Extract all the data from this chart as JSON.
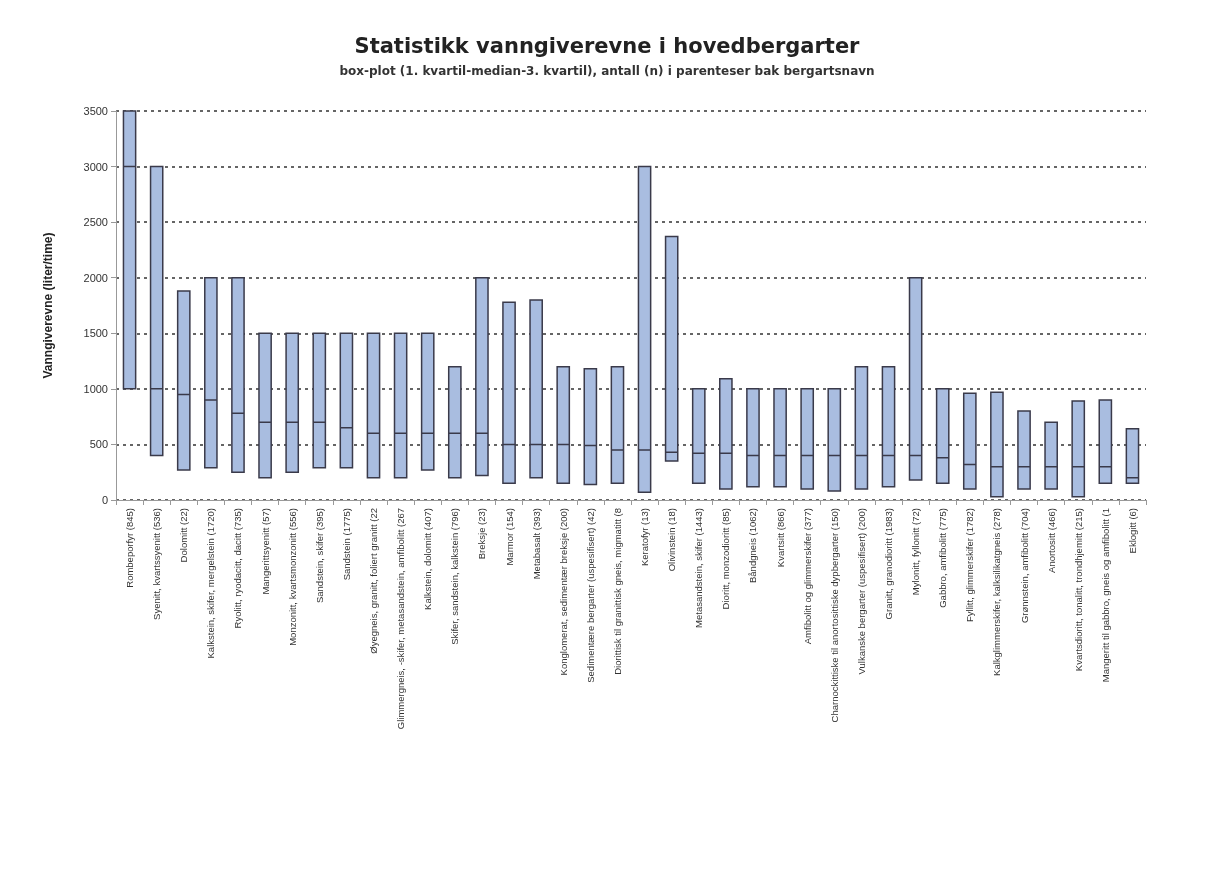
{
  "chart_data": {
    "type": "box",
    "title": "Statistikk vanngiverevne i hovedbergarter",
    "subtitle": "box-plot (1. kvartil-median-3. kvartil), antall (n) i parenteser bak bergartsnavn",
    "ylabel": "Vanngiverevne (liter/time)",
    "categories": [
      "Rombeporfyr (845)",
      "Syenitt, kvartssyenitt (536)",
      "Dolomitt (22)",
      "Kalkstein, skifer, mergelstein (1720)",
      "Ryolitt, ryodacitt, dacitt (735)",
      "Mangerittsyenitt (57)",
      "Monzonitt, kvartsmonzonitt (556)",
      "Sandstein, skifer (395)",
      "Sandstein (1775)",
      "Øyegneis, granitt, foliert granitt (22",
      "Glimmergneis, -skifer, metasandstein, amfibolitt (267",
      "Kalkstein, dolomitt (407)",
      "Skifer, sandstein, kalkstein (796)",
      "Breksje (23)",
      "Marmor (154)",
      "Metabasalt (393)",
      "Konglomerat, sedimentær breksje (200)",
      "Sedimentære bergarter (uspesifisert) (42)",
      "Diorittisk til granittisk gneis, migmatitt (8",
      "Keratofyr (13)",
      "Olivinstein (18)",
      "Metasandstein, skifer (1443)",
      "Dioritt, monzodioritt (85)",
      "Båndgneis (1062)",
      "Kvartsitt (866)",
      "Amfibolitt og glimmerskifer (377)",
      "Charnockittiske til anortosittiske dypbergarter (150)",
      "Vulkanske bergarter (uspesifisert) (200)",
      "Granitt, granodioritt (1983)",
      "Mylonitt, fyllonitt (72)",
      "Gabbro, amfibolitt (775)",
      "Fyllitt, glimmerskifer (1782)",
      "Kalkglimmerskifer, kalksilikatgneis (278)",
      "Grønnstein, amfibolitt (704)",
      "Anortositt (466)",
      "Kvartsdioritt, tonalitt, trondhjemitt (215)",
      "Mangeritt til gabbro, gneis og amfibolitt (1",
      "Eklogitt (6)"
    ],
    "series": [
      {
        "color": "#a9bde0",
        "boxes": [
          {
            "low": 1000,
            "q1": 1000,
            "median": 3000,
            "q3": 3500,
            "high": 3500
          },
          {
            "low": 400,
            "q1": 400,
            "median": 1000,
            "q3": 3000,
            "high": 3000
          },
          {
            "low": 270,
            "q1": 270,
            "median": 950,
            "q3": 1880,
            "high": 1880
          },
          {
            "low": 290,
            "q1": 290,
            "median": 900,
            "q3": 2000,
            "high": 2000
          },
          {
            "low": 250,
            "q1": 250,
            "median": 780,
            "q3": 2000,
            "high": 2000
          },
          {
            "low": 200,
            "q1": 200,
            "median": 700,
            "q3": 1500,
            "high": 1500
          },
          {
            "low": 250,
            "q1": 250,
            "median": 700,
            "q3": 1500,
            "high": 1500
          },
          {
            "low": 290,
            "q1": 290,
            "median": 700,
            "q3": 1500,
            "high": 1500
          },
          {
            "low": 290,
            "q1": 290,
            "median": 650,
            "q3": 1500,
            "high": 1500
          },
          {
            "low": 200,
            "q1": 200,
            "median": 600,
            "q3": 1500,
            "high": 1500
          },
          {
            "low": 200,
            "q1": 200,
            "median": 600,
            "q3": 1500,
            "high": 1500
          },
          {
            "low": 270,
            "q1": 270,
            "median": 600,
            "q3": 1500,
            "high": 1500
          },
          {
            "low": 200,
            "q1": 200,
            "median": 600,
            "q3": 1200,
            "high": 1200
          },
          {
            "low": 220,
            "q1": 220,
            "median": 600,
            "q3": 2000,
            "high": 2000
          },
          {
            "low": 150,
            "q1": 150,
            "median": 500,
            "q3": 1780,
            "high": 1780
          },
          {
            "low": 200,
            "q1": 200,
            "median": 500,
            "q3": 1800,
            "high": 1800
          },
          {
            "low": 150,
            "q1": 150,
            "median": 500,
            "q3": 1200,
            "high": 1200
          },
          {
            "low": 140,
            "q1": 140,
            "median": 490,
            "q3": 1180,
            "high": 1180
          },
          {
            "low": 150,
            "q1": 150,
            "median": 450,
            "q3": 1200,
            "high": 1200
          },
          {
            "low": 70,
            "q1": 70,
            "median": 450,
            "q3": 3000,
            "high": 3000
          },
          {
            "low": 350,
            "q1": 350,
            "median": 430,
            "q3": 2370,
            "high": 2370
          },
          {
            "low": 150,
            "q1": 150,
            "median": 420,
            "q3": 1000,
            "high": 1000
          },
          {
            "low": 100,
            "q1": 100,
            "median": 420,
            "q3": 1090,
            "high": 1090
          },
          {
            "low": 120,
            "q1": 120,
            "median": 400,
            "q3": 1000,
            "high": 1000
          },
          {
            "low": 120,
            "q1": 120,
            "median": 400,
            "q3": 1000,
            "high": 1000
          },
          {
            "low": 100,
            "q1": 100,
            "median": 400,
            "q3": 1000,
            "high": 1000
          },
          {
            "low": 80,
            "q1": 80,
            "median": 400,
            "q3": 1000,
            "high": 1000
          },
          {
            "low": 100,
            "q1": 100,
            "median": 400,
            "q3": 1200,
            "high": 1200
          },
          {
            "low": 120,
            "q1": 120,
            "median": 400,
            "q3": 1200,
            "high": 1200
          },
          {
            "low": 180,
            "q1": 180,
            "median": 400,
            "q3": 2000,
            "high": 2000
          },
          {
            "low": 150,
            "q1": 150,
            "median": 380,
            "q3": 1000,
            "high": 1000
          },
          {
            "low": 100,
            "q1": 100,
            "median": 320,
            "q3": 960,
            "high": 960
          },
          {
            "low": 30,
            "q1": 30,
            "median": 300,
            "q3": 970,
            "high": 970
          },
          {
            "low": 100,
            "q1": 100,
            "median": 300,
            "q3": 800,
            "high": 800
          },
          {
            "low": 100,
            "q1": 100,
            "median": 300,
            "q3": 700,
            "high": 700
          },
          {
            "low": 30,
            "q1": 30,
            "median": 300,
            "q3": 890,
            "high": 890
          },
          {
            "low": 150,
            "q1": 150,
            "median": 300,
            "q3": 900,
            "high": 900
          },
          {
            "low": 150,
            "q1": 150,
            "median": 200,
            "q3": 640,
            "high": 640
          }
        ]
      }
    ],
    "ylim": [
      0,
      3500
    ],
    "yticks": [
      0,
      500,
      1000,
      1500,
      2000,
      2500,
      3000,
      3500
    ],
    "grid": "y"
  }
}
